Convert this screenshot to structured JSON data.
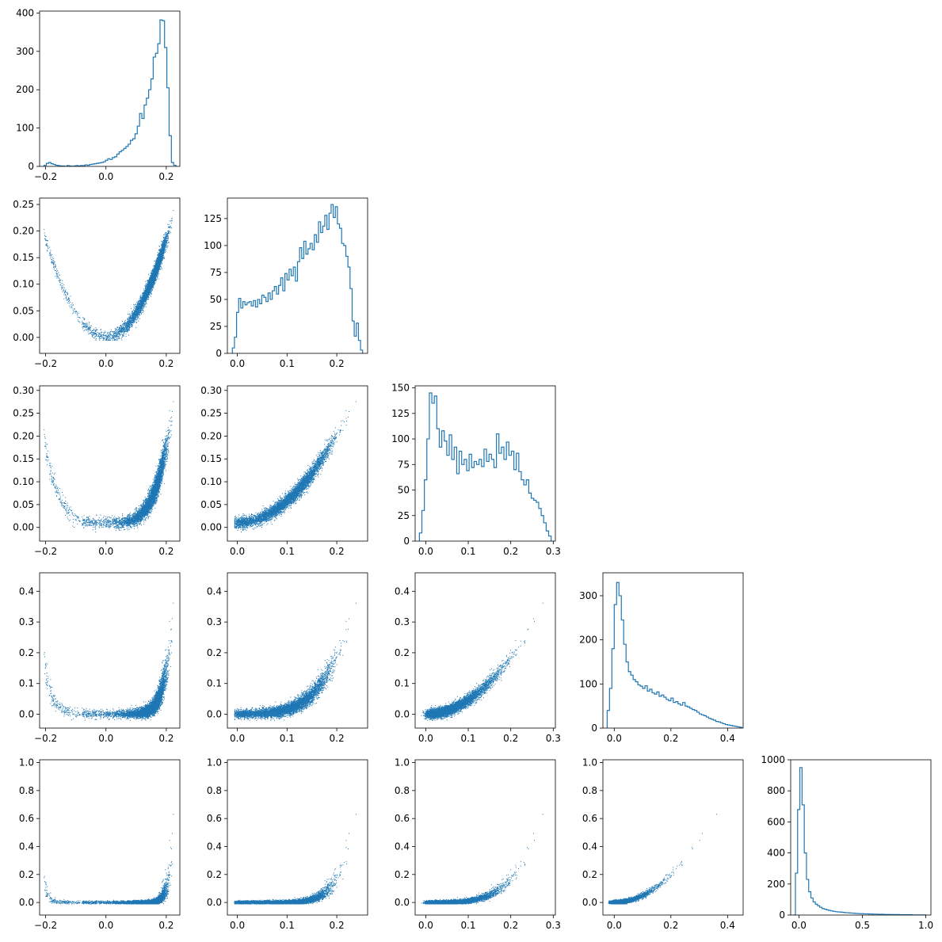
{
  "accent_color": "#1f77b4",
  "chart_data": [
    {
      "id": "hist-0",
      "type": "step-histogram",
      "row": 0,
      "col": 0,
      "series_index": 0,
      "xlim": [
        -0.22,
        0.245
      ],
      "ylim": [
        0,
        405
      ],
      "xticks": [
        -0.2,
        0.0,
        0.2
      ],
      "xtick_labels": [
        "−0.2",
        "0.0",
        "0.2"
      ],
      "yticks": [
        0,
        100,
        200,
        300,
        400
      ],
      "ytick_labels": [
        "0",
        "100",
        "200",
        "300",
        "400"
      ],
      "bins_range": [
        -0.205,
        0.232
      ],
      "counts": [
        3,
        8,
        10,
        7,
        5,
        3,
        2,
        1,
        1,
        0,
        2,
        1,
        0,
        1,
        2,
        1,
        2,
        2,
        4,
        3,
        5,
        6,
        7,
        8,
        9,
        10,
        12,
        16,
        20,
        18,
        23,
        25,
        32,
        38,
        42,
        47,
        52,
        58,
        68,
        72,
        85,
        105,
        138,
        125,
        160,
        178,
        200,
        228,
        285,
        295,
        320,
        382,
        380,
        310,
        205,
        80,
        10,
        3
      ]
    },
    {
      "id": "hist-1",
      "type": "step-histogram",
      "row": 1,
      "col": 1,
      "series_index": 1,
      "xlim": [
        -0.02,
        0.262
      ],
      "ylim": [
        0,
        144
      ],
      "xticks": [
        0.0,
        0.1,
        0.2
      ],
      "xtick_labels": [
        "0.0",
        "0.1",
        "0.2"
      ],
      "yticks": [
        0,
        25,
        50,
        75,
        100,
        125
      ],
      "ytick_labels": [
        "0",
        "25",
        "50",
        "75",
        "100",
        "125"
      ],
      "bins_range": [
        -0.01,
        0.252
      ],
      "counts": [
        5,
        15,
        38,
        51,
        42,
        48,
        45,
        47,
        48,
        44,
        49,
        43,
        50,
        46,
        54,
        52,
        48,
        56,
        50,
        58,
        62,
        55,
        63,
        70,
        58,
        74,
        68,
        78,
        72,
        80,
        67,
        85,
        98,
        88,
        104,
        92,
        97,
        102,
        96,
        110,
        103,
        122,
        112,
        118,
        128,
        115,
        130,
        138,
        126,
        136,
        120,
        116,
        102,
        100,
        90,
        80,
        60,
        30,
        16,
        28,
        12,
        3
      ]
    },
    {
      "id": "hist-2",
      "type": "step-histogram",
      "row": 2,
      "col": 2,
      "series_index": 2,
      "xlim": [
        -0.025,
        0.305
      ],
      "ylim": [
        0,
        152
      ],
      "xticks": [
        0.0,
        0.1,
        0.2,
        0.3
      ],
      "xtick_labels": [
        "0.0",
        "0.1",
        "0.2",
        "0.3"
      ],
      "yticks": [
        0,
        25,
        50,
        75,
        100,
        125,
        150
      ],
      "ytick_labels": [
        "0",
        "25",
        "50",
        "75",
        "100",
        "125",
        "150"
      ],
      "bins_range": [
        -0.015,
        0.295
      ],
      "counts": [
        8,
        30,
        60,
        100,
        145,
        135,
        142,
        110,
        92,
        108,
        98,
        84,
        104,
        80,
        92,
        66,
        88,
        75,
        80,
        69,
        85,
        72,
        78,
        75,
        80,
        73,
        90,
        78,
        85,
        80,
        72,
        105,
        86,
        92,
        80,
        97,
        84,
        88,
        70,
        86,
        68,
        60,
        55,
        60,
        47,
        42,
        40,
        38,
        32,
        25,
        18,
        10,
        5
      ]
    },
    {
      "id": "hist-3",
      "type": "step-histogram",
      "row": 3,
      "col": 3,
      "series_index": 3,
      "xlim": [
        -0.04,
        0.455
      ],
      "ylim": [
        0,
        352
      ],
      "xticks": [
        0.0,
        0.2,
        0.4
      ],
      "xtick_labels": [
        "0.0",
        "0.2",
        "0.4"
      ],
      "yticks": [
        0,
        100,
        200,
        300
      ],
      "ytick_labels": [
        "0",
        "100",
        "200",
        "300"
      ],
      "bins_range": [
        -0.025,
        0.45
      ],
      "counts": [
        40,
        90,
        180,
        280,
        330,
        300,
        245,
        190,
        150,
        128,
        120,
        110,
        105,
        98,
        95,
        90,
        96,
        84,
        88,
        80,
        77,
        82,
        72,
        75,
        70,
        65,
        62,
        68,
        58,
        60,
        55,
        52,
        58,
        50,
        48,
        45,
        42,
        40,
        36,
        32,
        30,
        28,
        25,
        22,
        20,
        18,
        15,
        14,
        12,
        10,
        8,
        7,
        6,
        5,
        4,
        3,
        2
      ]
    },
    {
      "id": "hist-4",
      "type": "step-histogram",
      "row": 4,
      "col": 4,
      "series_index": 4,
      "xlim": [
        -0.065,
        1.04
      ],
      "ylim": [
        0,
        1000
      ],
      "xticks": [
        0.0,
        0.5,
        1.0
      ],
      "xtick_labels": [
        "0.0",
        "0.5",
        "1.0"
      ],
      "yticks": [
        0,
        200,
        400,
        600,
        800,
        1000
      ],
      "ytick_labels": [
        "0",
        "200",
        "400",
        "600",
        "800",
        "1000"
      ],
      "bins_range": [
        -0.045,
        1.0
      ],
      "counts": [
        0,
        270,
        680,
        950,
        710,
        400,
        230,
        150,
        110,
        85,
        70,
        60,
        50,
        42,
        38,
        34,
        30,
        27,
        24,
        22,
        20,
        19,
        18,
        16,
        15,
        14,
        13,
        12,
        11,
        10,
        9,
        9,
        8,
        8,
        7,
        7,
        6,
        6,
        5,
        5,
        5,
        4,
        4,
        4,
        3,
        3,
        3,
        3,
        2,
        2,
        2,
        2,
        2,
        2,
        1,
        1,
        1,
        1,
        1,
        1
      ]
    },
    {
      "id": "scatter-1-0",
      "type": "scatter",
      "row": 1,
      "col": 0,
      "x_series": 0,
      "y_series": 1,
      "xlim": [
        -0.22,
        0.245
      ],
      "ylim": [
        -0.03,
        0.262
      ],
      "xticks": [
        -0.2,
        0.0,
        0.2
      ],
      "xtick_labels": [
        "−0.2",
        "0.0",
        "0.2"
      ],
      "yticks": [
        0.0,
        0.05,
        0.1,
        0.15,
        0.2,
        0.25
      ],
      "ytick_labels": [
        "0.00",
        "0.05",
        "0.10",
        "0.15",
        "0.20",
        "0.25"
      ]
    },
    {
      "id": "scatter-2-0",
      "type": "scatter",
      "row": 2,
      "col": 0,
      "x_series": 0,
      "y_series": 2,
      "xlim": [
        -0.22,
        0.245
      ],
      "ylim": [
        -0.03,
        0.31
      ],
      "xticks": [
        -0.2,
        0.0,
        0.2
      ],
      "xtick_labels": [
        "−0.2",
        "0.0",
        "0.2"
      ],
      "yticks": [
        0.0,
        0.05,
        0.1,
        0.15,
        0.2,
        0.25,
        0.3
      ],
      "ytick_labels": [
        "0.00",
        "0.05",
        "0.10",
        "0.15",
        "0.20",
        "0.25",
        "0.30"
      ]
    },
    {
      "id": "scatter-2-1",
      "type": "scatter",
      "row": 2,
      "col": 1,
      "x_series": 1,
      "y_series": 2,
      "xlim": [
        -0.02,
        0.262
      ],
      "ylim": [
        -0.03,
        0.31
      ],
      "xticks": [
        0.0,
        0.1,
        0.2
      ],
      "xtick_labels": [
        "0.0",
        "0.1",
        "0.2"
      ],
      "yticks": [
        0.0,
        0.05,
        0.1,
        0.15,
        0.2,
        0.25,
        0.3
      ],
      "ytick_labels": [
        "0.00",
        "0.05",
        "0.10",
        "0.15",
        "0.20",
        "0.25",
        "0.30"
      ]
    },
    {
      "id": "scatter-3-0",
      "type": "scatter",
      "row": 3,
      "col": 0,
      "x_series": 0,
      "y_series": 3,
      "xlim": [
        -0.22,
        0.245
      ],
      "ylim": [
        -0.045,
        0.46
      ],
      "xticks": [
        -0.2,
        0.0,
        0.2
      ],
      "xtick_labels": [
        "−0.2",
        "0.0",
        "0.2"
      ],
      "yticks": [
        0.0,
        0.1,
        0.2,
        0.3,
        0.4
      ],
      "ytick_labels": [
        "0.0",
        "0.1",
        "0.2",
        "0.3",
        "0.4"
      ]
    },
    {
      "id": "scatter-3-1",
      "type": "scatter",
      "row": 3,
      "col": 1,
      "x_series": 1,
      "y_series": 3,
      "xlim": [
        -0.02,
        0.262
      ],
      "ylim": [
        -0.045,
        0.46
      ],
      "xticks": [
        0.0,
        0.1,
        0.2
      ],
      "xtick_labels": [
        "0.0",
        "0.1",
        "0.2"
      ],
      "yticks": [
        0.0,
        0.1,
        0.2,
        0.3,
        0.4
      ],
      "ytick_labels": [
        "0.0",
        "0.1",
        "0.2",
        "0.3",
        "0.4"
      ]
    },
    {
      "id": "scatter-3-2",
      "type": "scatter",
      "row": 3,
      "col": 2,
      "x_series": 2,
      "y_series": 3,
      "xlim": [
        -0.025,
        0.305
      ],
      "ylim": [
        -0.045,
        0.46
      ],
      "xticks": [
        0.0,
        0.1,
        0.2,
        0.3
      ],
      "xtick_labels": [
        "0.0",
        "0.1",
        "0.2",
        "0.3"
      ],
      "yticks": [
        0.0,
        0.1,
        0.2,
        0.3,
        0.4
      ],
      "ytick_labels": [
        "0.0",
        "0.1",
        "0.2",
        "0.3",
        "0.4"
      ]
    },
    {
      "id": "scatter-4-0",
      "type": "scatter",
      "row": 4,
      "col": 0,
      "x_series": 0,
      "y_series": 4,
      "xlim": [
        -0.22,
        0.245
      ],
      "ylim": [
        -0.09,
        1.02
      ],
      "xticks": [
        -0.2,
        0.0,
        0.2
      ],
      "xtick_labels": [
        "−0.2",
        "0.0",
        "0.2"
      ],
      "yticks": [
        0.0,
        0.2,
        0.4,
        0.6,
        0.8,
        1.0
      ],
      "ytick_labels": [
        "0.0",
        "0.2",
        "0.4",
        "0.6",
        "0.8",
        "1.0"
      ]
    },
    {
      "id": "scatter-4-1",
      "type": "scatter",
      "row": 4,
      "col": 1,
      "x_series": 1,
      "y_series": 4,
      "xlim": [
        -0.02,
        0.262
      ],
      "ylim": [
        -0.09,
        1.02
      ],
      "xticks": [
        0.0,
        0.1,
        0.2
      ],
      "xtick_labels": [
        "0.0",
        "0.1",
        "0.2"
      ],
      "yticks": [
        0.0,
        0.2,
        0.4,
        0.6,
        0.8,
        1.0
      ],
      "ytick_labels": [
        "0.0",
        "0.2",
        "0.4",
        "0.6",
        "0.8",
        "1.0"
      ]
    },
    {
      "id": "scatter-4-2",
      "type": "scatter",
      "row": 4,
      "col": 2,
      "x_series": 2,
      "y_series": 4,
      "xlim": [
        -0.025,
        0.305
      ],
      "ylim": [
        -0.09,
        1.02
      ],
      "xticks": [
        0.0,
        0.1,
        0.2,
        0.3
      ],
      "xtick_labels": [
        "0.0",
        "0.1",
        "0.2",
        "0.3"
      ],
      "yticks": [
        0.0,
        0.2,
        0.4,
        0.6,
        0.8,
        1.0
      ],
      "ytick_labels": [
        "0.0",
        "0.2",
        "0.4",
        "0.6",
        "0.8",
        "1.0"
      ]
    },
    {
      "id": "scatter-4-3",
      "type": "scatter",
      "row": 4,
      "col": 3,
      "x_series": 3,
      "y_series": 4,
      "xlim": [
        -0.04,
        0.455
      ],
      "ylim": [
        -0.09,
        1.02
      ],
      "xticks": [
        0.0,
        0.2,
        0.4
      ],
      "xtick_labels": [
        "0.0",
        "0.2",
        "0.4"
      ],
      "yticks": [
        0.0,
        0.2,
        0.4,
        0.6,
        0.8,
        1.0
      ],
      "ytick_labels": [
        "0.0",
        "0.2",
        "0.4",
        "0.6",
        "0.8",
        "1.0"
      ]
    }
  ]
}
